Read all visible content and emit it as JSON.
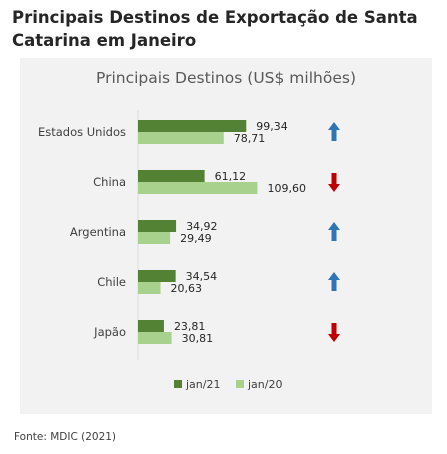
{
  "page": {
    "heading_line1": "Principais Destinos de Exportação de Santa",
    "heading_line2": "Catarina em Janeiro",
    "footer": "Fonte: MDIC (2021)"
  },
  "chart_data": {
    "type": "bar",
    "orientation": "horizontal",
    "title": "Principais Destinos (US$ milhões)",
    "categories": [
      "Estados Unidos",
      "China",
      "Argentina",
      "Chile",
      "Japão"
    ],
    "series": [
      {
        "name": "jan/21",
        "color": "#548235",
        "values": [
          99.34,
          61.12,
          34.92,
          34.54,
          23.81
        ],
        "labels": [
          "99,34",
          "61,12",
          "34,92",
          "34,54",
          "23,81"
        ]
      },
      {
        "name": "jan/20",
        "color": "#a9d18e",
        "values": [
          78.71,
          109.6,
          29.49,
          20.63,
          30.81
        ],
        "labels": [
          "78,71",
          "109,60",
          "29,49",
          "20,63",
          "30,81"
        ]
      }
    ],
    "trend_icons": [
      "arrow-up-icon",
      "arrow-down-icon",
      "arrow-up-icon",
      "arrow-up-icon",
      "arrow-down-icon"
    ],
    "trend_colors": {
      "up": "#2e75b6",
      "down": "#c00000"
    },
    "legend_position": "bottom",
    "grid": false
  }
}
